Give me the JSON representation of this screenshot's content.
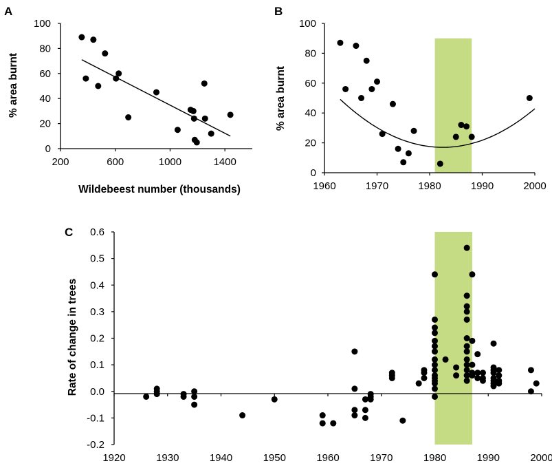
{
  "chart_data": [
    {
      "panel": "A",
      "type": "scatter",
      "xlabel": "Wildebeest number (thousands)",
      "ylabel": "% area burnt",
      "xlim": [
        200,
        1600
      ],
      "ylim": [
        0,
        100
      ],
      "xticks": [
        "200",
        "600",
        "1000",
        "1400"
      ],
      "yticks": [
        "0",
        "20",
        "40",
        "60",
        "80",
        "100"
      ],
      "points": [
        {
          "x": 355,
          "y": 89
        },
        {
          "x": 385,
          "y": 56
        },
        {
          "x": 440,
          "y": 87
        },
        {
          "x": 475,
          "y": 50
        },
        {
          "x": 525,
          "y": 76
        },
        {
          "x": 605,
          "y": 56
        },
        {
          "x": 625,
          "y": 60
        },
        {
          "x": 695,
          "y": 25
        },
        {
          "x": 900,
          "y": 45
        },
        {
          "x": 1055,
          "y": 15
        },
        {
          "x": 1150,
          "y": 31
        },
        {
          "x": 1170,
          "y": 30
        },
        {
          "x": 1175,
          "y": 24
        },
        {
          "x": 1180,
          "y": 7
        },
        {
          "x": 1195,
          "y": 5
        },
        {
          "x": 1250,
          "y": 52
        },
        {
          "x": 1255,
          "y": 24
        },
        {
          "x": 1300,
          "y": 12
        },
        {
          "x": 1440,
          "y": 27
        }
      ],
      "fit_line": {
        "x": [
          355,
          1440
        ],
        "y": [
          71,
          10
        ]
      }
    },
    {
      "panel": "B",
      "type": "scatter",
      "xlabel": "",
      "ylabel": "% area burnt",
      "xlim": [
        1960,
        2000
      ],
      "ylim": [
        0,
        100
      ],
      "xticks": [
        "1960",
        "1970",
        "1980",
        "1990",
        "2000"
      ],
      "yticks": [
        "0",
        "20",
        "40",
        "60",
        "80",
        "100"
      ],
      "highlight": {
        "x0": 1981,
        "x1": 1988,
        "y0": 0,
        "y1": 90,
        "color": "#c5dc85"
      },
      "points": [
        {
          "x": 1963,
          "y": 87
        },
        {
          "x": 1964,
          "y": 56
        },
        {
          "x": 1966,
          "y": 85
        },
        {
          "x": 1967,
          "y": 50
        },
        {
          "x": 1968,
          "y": 75
        },
        {
          "x": 1969,
          "y": 56
        },
        {
          "x": 1970,
          "y": 61
        },
        {
          "x": 1971,
          "y": 26
        },
        {
          "x": 1973,
          "y": 46
        },
        {
          "x": 1974,
          "y": 16
        },
        {
          "x": 1975,
          "y": 7
        },
        {
          "x": 1976,
          "y": 13
        },
        {
          "x": 1977,
          "y": 28
        },
        {
          "x": 1982,
          "y": 6
        },
        {
          "x": 1985,
          "y": 24
        },
        {
          "x": 1986,
          "y": 32
        },
        {
          "x": 1987,
          "y": 31
        },
        {
          "x": 1988,
          "y": 24
        },
        {
          "x": 1999,
          "y": 50
        }
      ],
      "fit_curve": {
        "type": "quadratic",
        "vertex_x": 1982.5,
        "vertex_y": 17,
        "a": 0.0845,
        "x_range": [
          1963,
          2000
        ]
      }
    },
    {
      "panel": "C",
      "type": "scatter",
      "xlabel": "",
      "ylabel": "Rate of change in  trees",
      "xlim": [
        1920,
        2000
      ],
      "ylim": [
        -0.2,
        0.6
      ],
      "xticks": [
        "1920",
        "1930",
        "1940",
        "1950",
        "1960",
        "1970",
        "1980",
        "1990",
        "2000"
      ],
      "yticks": [
        "-0.2",
        "-0.1",
        "0.0",
        "0.1",
        "0.2",
        "0.3",
        "0.4",
        "0.5",
        "0.6"
      ],
      "highlight": {
        "x0": 1980,
        "x1": 1987,
        "y0": -0.2,
        "y1": 0.6,
        "color": "#c5dc85"
      },
      "points": [
        {
          "x": 1926,
          "y": -0.02
        },
        {
          "x": 1928,
          "y": 0.01
        },
        {
          "x": 1928,
          "y": -0.01
        },
        {
          "x": 1928,
          "y": 0.0
        },
        {
          "x": 1933,
          "y": -0.01
        },
        {
          "x": 1933,
          "y": -0.02
        },
        {
          "x": 1935,
          "y": 0.0
        },
        {
          "x": 1935,
          "y": -0.02
        },
        {
          "x": 1935,
          "y": -0.05
        },
        {
          "x": 1944,
          "y": -0.09
        },
        {
          "x": 1950,
          "y": -0.03
        },
        {
          "x": 1959,
          "y": -0.09
        },
        {
          "x": 1959,
          "y": -0.12
        },
        {
          "x": 1961,
          "y": -0.12
        },
        {
          "x": 1965,
          "y": 0.15
        },
        {
          "x": 1965,
          "y": 0.01
        },
        {
          "x": 1965,
          "y": -0.07
        },
        {
          "x": 1965,
          "y": -0.09
        },
        {
          "x": 1967,
          "y": -0.03
        },
        {
          "x": 1967,
          "y": -0.07
        },
        {
          "x": 1967,
          "y": -0.1
        },
        {
          "x": 1968,
          "y": -0.01
        },
        {
          "x": 1968,
          "y": -0.02
        },
        {
          "x": 1968,
          "y": -0.03
        },
        {
          "x": 1972,
          "y": 0.07
        },
        {
          "x": 1972,
          "y": 0.06
        },
        {
          "x": 1972,
          "y": 0.05
        },
        {
          "x": 1974,
          "y": -0.11
        },
        {
          "x": 1977,
          "y": 0.03
        },
        {
          "x": 1978,
          "y": 0.05
        },
        {
          "x": 1978,
          "y": 0.07
        },
        {
          "x": 1978,
          "y": 0.08
        },
        {
          "x": 1980,
          "y": 0.44
        },
        {
          "x": 1980,
          "y": 0.27
        },
        {
          "x": 1980,
          "y": 0.24
        },
        {
          "x": 1980,
          "y": 0.22
        },
        {
          "x": 1980,
          "y": 0.19
        },
        {
          "x": 1980,
          "y": 0.17
        },
        {
          "x": 1980,
          "y": 0.15
        },
        {
          "x": 1980,
          "y": 0.12
        },
        {
          "x": 1980,
          "y": 0.1
        },
        {
          "x": 1980,
          "y": 0.08
        },
        {
          "x": 1980,
          "y": 0.06
        },
        {
          "x": 1980,
          "y": 0.05
        },
        {
          "x": 1980,
          "y": 0.04
        },
        {
          "x": 1980,
          "y": 0.03
        },
        {
          "x": 1980,
          "y": 0.01
        },
        {
          "x": 1980,
          "y": -0.02
        },
        {
          "x": 1982,
          "y": 0.12
        },
        {
          "x": 1984,
          "y": 0.09
        },
        {
          "x": 1984,
          "y": 0.06
        },
        {
          "x": 1986,
          "y": 0.54
        },
        {
          "x": 1986,
          "y": 0.36
        },
        {
          "x": 1986,
          "y": 0.32
        },
        {
          "x": 1986,
          "y": 0.3
        },
        {
          "x": 1986,
          "y": 0.27
        },
        {
          "x": 1986,
          "y": 0.2
        },
        {
          "x": 1986,
          "y": 0.17
        },
        {
          "x": 1986,
          "y": 0.15
        },
        {
          "x": 1986,
          "y": 0.12
        },
        {
          "x": 1986,
          "y": 0.1
        },
        {
          "x": 1986,
          "y": 0.08
        },
        {
          "x": 1986,
          "y": 0.06
        },
        {
          "x": 1986,
          "y": 0.04
        },
        {
          "x": 1987,
          "y": 0.44
        },
        {
          "x": 1987,
          "y": 0.19
        },
        {
          "x": 1987,
          "y": 0.1
        },
        {
          "x": 1987,
          "y": 0.07
        },
        {
          "x": 1987,
          "y": 0.06
        },
        {
          "x": 1988,
          "y": 0.14
        },
        {
          "x": 1988,
          "y": 0.07
        },
        {
          "x": 1988,
          "y": 0.05
        },
        {
          "x": 1989,
          "y": 0.07
        },
        {
          "x": 1989,
          "y": 0.05
        },
        {
          "x": 1989,
          "y": 0.04
        },
        {
          "x": 1991,
          "y": 0.18
        },
        {
          "x": 1991,
          "y": 0.09
        },
        {
          "x": 1991,
          "y": 0.08
        },
        {
          "x": 1991,
          "y": 0.07
        },
        {
          "x": 1991,
          "y": 0.05
        },
        {
          "x": 1991,
          "y": 0.04
        },
        {
          "x": 1991,
          "y": 0.03
        },
        {
          "x": 1991,
          "y": 0.02
        },
        {
          "x": 1992,
          "y": 0.08
        },
        {
          "x": 1992,
          "y": 0.06
        },
        {
          "x": 1992,
          "y": 0.04
        },
        {
          "x": 1992,
          "y": 0.03
        },
        {
          "x": 1998,
          "y": 0.08
        },
        {
          "x": 1998,
          "y": 0.0
        },
        {
          "x": 1999,
          "y": 0.03
        }
      ]
    }
  ]
}
